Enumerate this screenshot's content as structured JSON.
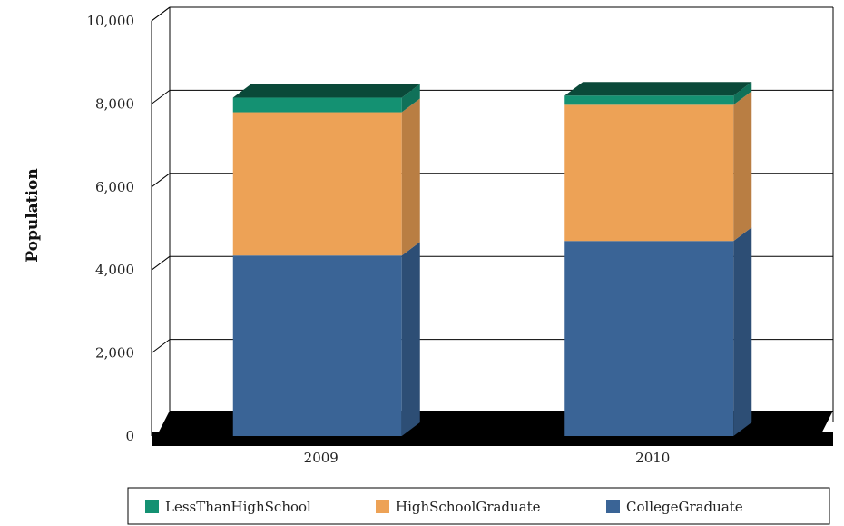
{
  "chart_data": {
    "type": "bar",
    "stacked": true,
    "style": "3d",
    "categories": [
      "2009",
      "2010"
    ],
    "series": [
      {
        "name": "CollegeGraduate",
        "values": [
          4350,
          4700
        ],
        "color": "#3A6496"
      },
      {
        "name": "HighSchoolGraduate",
        "values": [
          3450,
          3280
        ],
        "color": "#EDA256"
      },
      {
        "name": "LessThanHighSchool",
        "values": [
          350,
          220
        ],
        "color": "#149172"
      }
    ],
    "xlabel": "",
    "ylabel": "Population",
    "ylim": [
      0,
      10000
    ],
    "yticks": [
      "0",
      "2,000",
      "4,000",
      "6,000",
      "8,000",
      "10,000"
    ],
    "ytick_values": [
      0,
      2000,
      4000,
      6000,
      8000,
      10000
    ],
    "grid": true,
    "legend_position": "bottom",
    "legend_order": [
      "LessThanHighSchool",
      "HighSchoolGraduate",
      "CollegeGraduate"
    ]
  }
}
